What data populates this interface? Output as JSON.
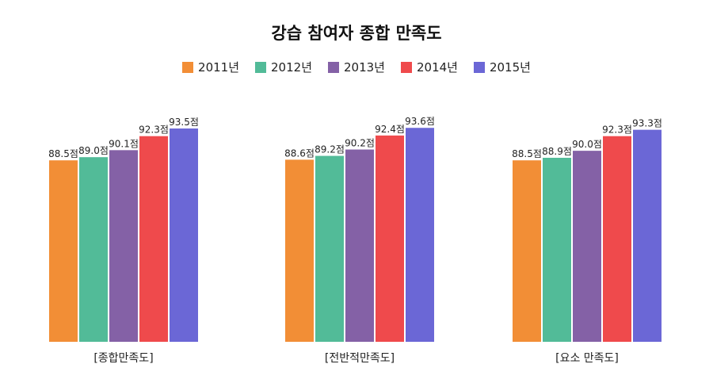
{
  "chart_data": {
    "type": "bar",
    "title": "강습 참여자 종합 만족도",
    "categories": [
      "[종합만족도]",
      "[전반적만족도]",
      "[요소 만족도]"
    ],
    "series": [
      {
        "name": "2011년",
        "color": "#f28e36",
        "values": [
          88.5,
          88.6,
          88.5
        ],
        "labels": [
          "88.5점",
          "88.6점",
          "88.5점"
        ]
      },
      {
        "name": "2012년",
        "color": "#52bb98",
        "values": [
          89.0,
          89.2,
          88.9
        ],
        "labels": [
          "89.0점",
          "89.2점",
          "88.9점"
        ]
      },
      {
        "name": "2013년",
        "color": "#8461a6",
        "values": [
          90.1,
          90.2,
          90.0
        ],
        "labels": [
          "90.1점",
          "90.2점",
          "90.0점"
        ]
      },
      {
        "name": "2014년",
        "color": "#ef4a4c",
        "values": [
          92.3,
          92.4,
          92.3
        ],
        "labels": [
          "92.3점",
          "92.4점",
          "92.3점"
        ]
      },
      {
        "name": "2015년",
        "color": "#6b67d6",
        "values": [
          93.5,
          93.6,
          93.3
        ],
        "labels": [
          "93.5점",
          "93.6점",
          "93.3점"
        ]
      }
    ],
    "ylim": [
      60,
      95
    ],
    "grid": false,
    "legend_position": "top"
  }
}
